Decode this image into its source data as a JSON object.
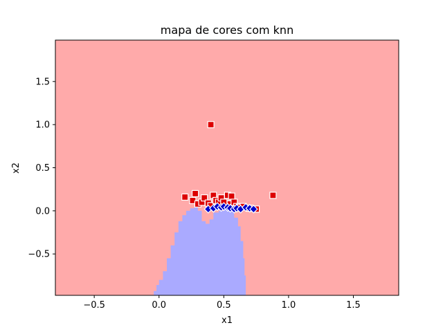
{
  "chart_data": {
    "type": "scatter",
    "title": "mapa de cores com knn",
    "xlabel": "x1",
    "ylabel": "x2",
    "xlim": [
      -0.8,
      1.85
    ],
    "ylim": [
      -0.98,
      1.98
    ],
    "x_ticks": [
      -0.5,
      0.0,
      0.5,
      1.0,
      1.5
    ],
    "x_tick_labels": [
      "−0.5",
      "0.0",
      "0.5",
      "1.0",
      "1.5"
    ],
    "y_ticks": [
      -0.5,
      0.0,
      0.5,
      1.0,
      1.5
    ],
    "y_tick_labels": [
      "−0.5",
      "0.0",
      "0.5",
      "1.0",
      "1.5"
    ],
    "grid": false,
    "background_region": {
      "class": "red",
      "color": "#ffaaaa"
    },
    "decision_region": {
      "class": "blue",
      "color": "#aaaaff",
      "boundary": [
        [
          -0.06,
          -0.98
        ],
        [
          -0.04,
          -0.93
        ],
        [
          -0.02,
          -0.86
        ],
        [
          0.0,
          -0.8
        ],
        [
          0.03,
          -0.7
        ],
        [
          0.06,
          -0.55
        ],
        [
          0.09,
          -0.4
        ],
        [
          0.12,
          -0.25
        ],
        [
          0.15,
          -0.12
        ],
        [
          0.18,
          -0.05
        ],
        [
          0.21,
          0.0
        ],
        [
          0.24,
          0.03
        ],
        [
          0.27,
          0.04
        ],
        [
          0.3,
          0.0
        ],
        [
          0.33,
          -0.12
        ],
        [
          0.36,
          -0.15
        ],
        [
          0.39,
          -0.1
        ],
        [
          0.42,
          -0.02
        ],
        [
          0.46,
          0.0
        ],
        [
          0.5,
          0.02
        ],
        [
          0.55,
          0.0
        ],
        [
          0.58,
          -0.08
        ],
        [
          0.61,
          -0.18
        ],
        [
          0.63,
          -0.35
        ],
        [
          0.65,
          -0.55
        ],
        [
          0.66,
          -0.75
        ],
        [
          0.67,
          -0.9
        ],
        [
          0.67,
          -0.98
        ]
      ]
    },
    "series": [
      {
        "marker": "square",
        "color": "#dd0000",
        "points": [
          [
            0.2,
            0.16
          ],
          [
            0.26,
            0.12
          ],
          [
            0.28,
            0.2
          ],
          [
            0.3,
            0.08
          ],
          [
            0.33,
            0.1
          ],
          [
            0.35,
            0.15
          ],
          [
            0.38,
            0.09
          ],
          [
            0.4,
            0.06
          ],
          [
            0.42,
            0.18
          ],
          [
            0.44,
            0.12
          ],
          [
            0.46,
            0.1
          ],
          [
            0.48,
            0.15
          ],
          [
            0.5,
            0.1
          ],
          [
            0.53,
            0.18
          ],
          [
            0.55,
            0.08
          ],
          [
            0.56,
            0.17
          ],
          [
            0.58,
            0.1
          ],
          [
            0.6,
            0.05
          ],
          [
            0.62,
            0.04
          ],
          [
            0.65,
            0.05
          ],
          [
            0.7,
            0.03
          ],
          [
            0.75,
            0.02
          ],
          [
            0.4,
            1.0
          ],
          [
            0.88,
            0.18
          ]
        ]
      },
      {
        "marker": "diamond",
        "color": "#0000cc",
        "points": [
          [
            0.38,
            0.02
          ],
          [
            0.42,
            0.03
          ],
          [
            0.45,
            0.05
          ],
          [
            0.48,
            0.04
          ],
          [
            0.5,
            0.05
          ],
          [
            0.53,
            0.04
          ],
          [
            0.55,
            0.03
          ],
          [
            0.58,
            0.02
          ],
          [
            0.6,
            0.03
          ],
          [
            0.63,
            0.02
          ],
          [
            0.67,
            0.04
          ],
          [
            0.7,
            0.03
          ],
          [
            0.73,
            0.02
          ]
        ]
      }
    ]
  }
}
